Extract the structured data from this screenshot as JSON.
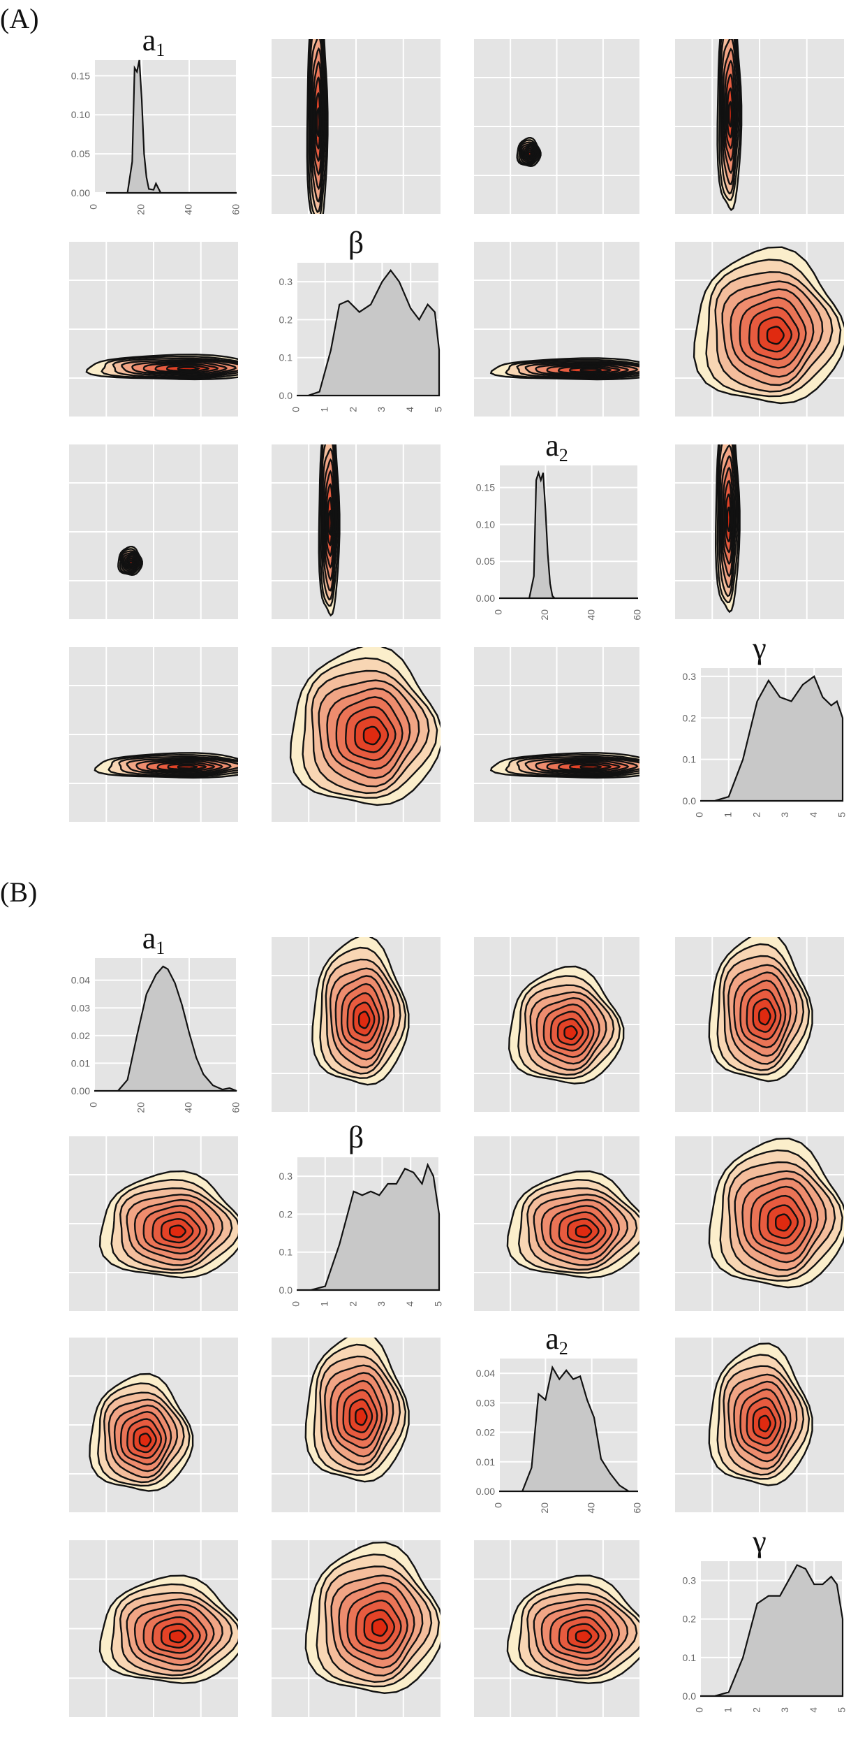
{
  "labels": {
    "A": "(A)",
    "B": "(B)"
  },
  "titles": {
    "a1": {
      "main": "a",
      "sub": "1"
    },
    "beta": {
      "main": "β",
      "sub": ""
    },
    "a2": {
      "main": "a",
      "sub": "2"
    },
    "gamma": {
      "main": "γ",
      "sub": ""
    }
  },
  "colors": {
    "panel_bg": "#e4e4e4",
    "grid": "#ffffff",
    "density_fill": "#c8c8c8",
    "contour_outer": "#fbeecb",
    "contour_inner": "#e02a10"
  },
  "chart_data": [
    {
      "type": "pairs-density",
      "panel": "(A)",
      "variables": [
        "a1",
        "beta",
        "a2",
        "gamma"
      ],
      "diagonal": [
        {
          "var": "a1",
          "xlim": [
            0,
            60
          ],
          "xticks": [
            "0",
            "20",
            "40",
            "60"
          ],
          "ylim": [
            0,
            0.17
          ],
          "yticks": [
            "0.00",
            "0.05",
            "0.10",
            "0.15"
          ],
          "x": [
            5,
            14,
            16,
            17,
            18,
            19,
            20,
            21,
            22,
            23,
            25,
            26,
            28,
            60
          ],
          "y": [
            0,
            0,
            0.04,
            0.16,
            0.155,
            0.17,
            0.12,
            0.05,
            0.02,
            0.005,
            0.004,
            0.012,
            0,
            0
          ]
        },
        {
          "var": "beta",
          "xlim": [
            0,
            5
          ],
          "xticks": [
            "0",
            "1",
            "2",
            "3",
            "4",
            "5"
          ],
          "ylim": [
            0,
            0.35
          ],
          "yticks": [
            "0.0",
            "0.1",
            "0.2",
            "0.3"
          ],
          "x": [
            0,
            0.4,
            0.8,
            1.2,
            1.5,
            1.8,
            2.2,
            2.6,
            3.0,
            3.3,
            3.6,
            4.0,
            4.3,
            4.6,
            4.85,
            5.0
          ],
          "y": [
            0,
            0,
            0.01,
            0.12,
            0.24,
            0.25,
            0.22,
            0.24,
            0.3,
            0.33,
            0.3,
            0.23,
            0.2,
            0.24,
            0.22,
            0.12
          ]
        },
        {
          "var": "a2",
          "xlim": [
            0,
            60
          ],
          "xticks": [
            "0",
            "20",
            "40",
            "60"
          ],
          "ylim": [
            0,
            0.18
          ],
          "yticks": [
            "0.00",
            "0.05",
            "0.10",
            "0.15"
          ],
          "x": [
            0,
            13,
            15,
            16,
            17,
            18,
            19,
            20,
            21,
            22,
            23,
            24,
            60
          ],
          "y": [
            0,
            0,
            0.03,
            0.16,
            0.17,
            0.16,
            0.17,
            0.12,
            0.06,
            0.02,
            0.003,
            0,
            0
          ]
        },
        {
          "var": "gamma",
          "xlim": [
            0,
            5
          ],
          "xticks": [
            "0",
            "1",
            "2",
            "3",
            "4",
            "5"
          ],
          "ylim": [
            0,
            0.32
          ],
          "yticks": [
            "0.0",
            "0.1",
            "0.2",
            "0.3"
          ],
          "x": [
            0,
            0.5,
            1.0,
            1.5,
            2.0,
            2.4,
            2.8,
            3.2,
            3.6,
            4.0,
            4.3,
            4.6,
            4.8,
            5.0
          ],
          "y": [
            0,
            0,
            0.01,
            0.1,
            0.24,
            0.29,
            0.25,
            0.24,
            0.28,
            0.3,
            0.25,
            0.23,
            0.24,
            0.2
          ]
        }
      ],
      "offdiag": [
        {
          "row": 0,
          "col": 1,
          "cx": 0.27,
          "cy": 0.42,
          "rx": 0.06,
          "ry": 0.7,
          "clip": "top"
        },
        {
          "row": 0,
          "col": 2,
          "cx": 0.33,
          "cy": 0.65,
          "rx": 0.07,
          "ry": 0.08
        },
        {
          "row": 0,
          "col": 3,
          "cx": 0.32,
          "cy": 0.38,
          "rx": 0.07,
          "ry": 0.62,
          "clip": "top"
        },
        {
          "row": 1,
          "col": 0,
          "cx": 0.65,
          "cy": 0.72,
          "rx": 0.55,
          "ry": 0.07,
          "clip": "right"
        },
        {
          "row": 1,
          "col": 2,
          "cx": 0.65,
          "cy": 0.73,
          "rx": 0.55,
          "ry": 0.06,
          "clip": "right"
        },
        {
          "row": 1,
          "col": 3,
          "cx": 0.55,
          "cy": 0.5,
          "rx": 0.44,
          "ry": 0.44
        },
        {
          "row": 2,
          "col": 0,
          "cx": 0.36,
          "cy": 0.67,
          "rx": 0.07,
          "ry": 0.08
        },
        {
          "row": 2,
          "col": 1,
          "cx": 0.34,
          "cy": 0.4,
          "rx": 0.06,
          "ry": 0.6,
          "clip": "top"
        },
        {
          "row": 2,
          "col": 2,
          "cx": 0.0,
          "cy": 0.0,
          "rx": 0.0,
          "ry": 0.0
        },
        {
          "row": 2,
          "col": 3,
          "cx": 0.31,
          "cy": 0.38,
          "rx": 0.07,
          "ry": 0.6,
          "clip": "top"
        },
        {
          "row": 3,
          "col": 0,
          "cx": 0.65,
          "cy": 0.68,
          "rx": 0.5,
          "ry": 0.07,
          "clip": "right"
        },
        {
          "row": 3,
          "col": 1,
          "cx": 0.55,
          "cy": 0.47,
          "rx": 0.44,
          "ry": 0.45
        },
        {
          "row": 3,
          "col": 2,
          "cx": 0.65,
          "cy": 0.68,
          "rx": 0.55,
          "ry": 0.07,
          "clip": "right"
        }
      ]
    },
    {
      "type": "pairs-density",
      "panel": "(B)",
      "variables": [
        "a1",
        "beta",
        "a2",
        "gamma"
      ],
      "diagonal": [
        {
          "var": "a1",
          "xlim": [
            0,
            60
          ],
          "xticks": [
            "0",
            "20",
            "40",
            "60"
          ],
          "ylim": [
            0,
            0.048
          ],
          "yticks": [
            "0.00",
            "0.01",
            "0.02",
            "0.03",
            "0.04"
          ],
          "x": [
            0,
            10,
            14,
            18,
            22,
            26,
            29,
            31,
            34,
            37,
            40,
            43,
            46,
            50,
            54,
            57,
            60
          ],
          "y": [
            0,
            0,
            0.004,
            0.02,
            0.035,
            0.042,
            0.045,
            0.044,
            0.039,
            0.031,
            0.021,
            0.012,
            0.006,
            0.002,
            0.0005,
            0.001,
            0
          ]
        },
        {
          "var": "beta",
          "xlim": [
            0,
            5
          ],
          "xticks": [
            "0",
            "1",
            "2",
            "3",
            "4",
            "5"
          ],
          "ylim": [
            0,
            0.35
          ],
          "yticks": [
            "0.0",
            "0.1",
            "0.2",
            "0.3"
          ],
          "x": [
            0,
            0.5,
            1.0,
            1.5,
            2.0,
            2.3,
            2.6,
            2.9,
            3.2,
            3.5,
            3.8,
            4.1,
            4.4,
            4.6,
            4.8,
            5.0
          ],
          "y": [
            0,
            0,
            0.01,
            0.12,
            0.26,
            0.25,
            0.26,
            0.25,
            0.28,
            0.28,
            0.32,
            0.31,
            0.28,
            0.33,
            0.3,
            0.2
          ]
        },
        {
          "var": "a2",
          "xlim": [
            0,
            60
          ],
          "xticks": [
            "0",
            "20",
            "40",
            "60"
          ],
          "ylim": [
            0,
            0.045
          ],
          "yticks": [
            "0.00",
            "0.01",
            "0.02",
            "0.03",
            "0.04"
          ],
          "x": [
            0,
            10,
            14,
            17,
            20,
            23,
            26,
            29,
            32,
            35,
            38,
            41,
            44,
            48,
            52,
            56,
            60
          ],
          "y": [
            0,
            0,
            0.008,
            0.033,
            0.031,
            0.042,
            0.038,
            0.041,
            0.038,
            0.039,
            0.031,
            0.025,
            0.011,
            0.006,
            0.002,
            0,
            0
          ]
        },
        {
          "var": "gamma",
          "xlim": [
            0,
            5
          ],
          "xticks": [
            "0",
            "1",
            "2",
            "3",
            "4",
            "5"
          ],
          "ylim": [
            0,
            0.35
          ],
          "yticks": [
            "0.0",
            "0.1",
            "0.2",
            "0.3"
          ],
          "x": [
            0,
            0.5,
            1.0,
            1.5,
            2.0,
            2.4,
            2.8,
            3.1,
            3.4,
            3.7,
            4.0,
            4.3,
            4.6,
            4.8,
            5.0
          ],
          "y": [
            0,
            0,
            0.01,
            0.1,
            0.24,
            0.26,
            0.26,
            0.3,
            0.34,
            0.33,
            0.29,
            0.29,
            0.31,
            0.29,
            0.2
          ]
        }
      ],
      "offdiag": [
        {
          "row": 0,
          "col": 1,
          "cx": 0.52,
          "cy": 0.44,
          "rx": 0.28,
          "ry": 0.42
        },
        {
          "row": 0,
          "col": 2,
          "cx": 0.55,
          "cy": 0.52,
          "rx": 0.34,
          "ry": 0.33
        },
        {
          "row": 0,
          "col": 3,
          "cx": 0.5,
          "cy": 0.42,
          "rx": 0.3,
          "ry": 0.42
        },
        {
          "row": 1,
          "col": 0,
          "cx": 0.6,
          "cy": 0.52,
          "rx": 0.42,
          "ry": 0.3
        },
        {
          "row": 1,
          "col": 2,
          "cx": 0.62,
          "cy": 0.52,
          "rx": 0.42,
          "ry": 0.3
        },
        {
          "row": 1,
          "col": 3,
          "cx": 0.6,
          "cy": 0.46,
          "rx": 0.4,
          "ry": 0.42
        },
        {
          "row": 2,
          "col": 0,
          "cx": 0.42,
          "cy": 0.56,
          "rx": 0.3,
          "ry": 0.33
        },
        {
          "row": 2,
          "col": 1,
          "cx": 0.5,
          "cy": 0.42,
          "rx": 0.3,
          "ry": 0.42
        },
        {
          "row": 2,
          "col": 2,
          "cx": 0.0,
          "cy": 0.0,
          "rx": 0.0,
          "ry": 0.0
        },
        {
          "row": 2,
          "col": 3,
          "cx": 0.5,
          "cy": 0.46,
          "rx": 0.3,
          "ry": 0.4
        },
        {
          "row": 3,
          "col": 0,
          "cx": 0.6,
          "cy": 0.52,
          "rx": 0.42,
          "ry": 0.3
        },
        {
          "row": 3,
          "col": 1,
          "cx": 0.6,
          "cy": 0.46,
          "rx": 0.4,
          "ry": 0.42
        },
        {
          "row": 3,
          "col": 2,
          "cx": 0.62,
          "cy": 0.52,
          "rx": 0.42,
          "ry": 0.3
        }
      ]
    }
  ]
}
